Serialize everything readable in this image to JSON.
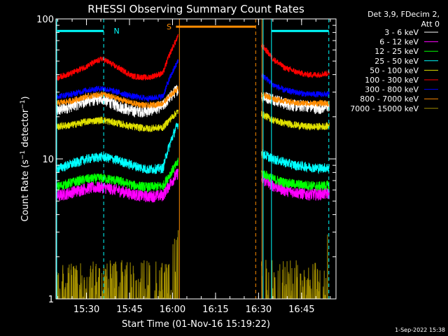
{
  "chart_data": {
    "type": "line",
    "title": "RHESSI Observing Summary Count Rates",
    "xlabel": "Start Time (01-Nov-16 15:19:22)",
    "ylabel": "Count Rate (s⁻¹ detector⁻¹)",
    "footer_date": "1-Sep-2022 15:38",
    "legend_header": [
      "Det 3,9, FDecim 2,",
      "Att 0"
    ],
    "y_scale": "log",
    "ylim": [
      1,
      100
    ],
    "y_ticks": [
      {
        "value": 1,
        "label": "1"
      },
      {
        "value": 10,
        "label": "10"
      },
      {
        "value": 100,
        "label": "100"
      }
    ],
    "xlim": [
      "15:19:22",
      "16:57:00"
    ],
    "x_ticks": [
      "15:30",
      "15:45",
      "16:00",
      "16:15",
      "16:30",
      "16:45"
    ],
    "x_tick_minutes": [
      30,
      45,
      60,
      75,
      90,
      105
    ],
    "x_start_minutes": 19.37,
    "x_end_minutes": 117,
    "gap": [
      "16:02",
      "16:31"
    ],
    "gap_minutes": [
      62.0,
      91.0
    ],
    "annotations": [
      {
        "label": "N",
        "color": "#00ffff",
        "text_at": 40.5,
        "span": [
          19.8,
          36.0
        ],
        "level": 82,
        "dashed_at": [
          36.0
        ]
      },
      {
        "label": "S",
        "color": "#ff8c00",
        "text_at": 58.8,
        "span": [
          61.2,
          89.0
        ],
        "level": 88,
        "dashed_at": [
          89.0
        ]
      },
      {
        "label": "",
        "color": "#00ffff",
        "text_at": null,
        "span": [
          94.5,
          114.5
        ],
        "level": 82,
        "dashed_at": [
          114.5
        ]
      }
    ],
    "series": [
      {
        "name": "3 - 6 keV",
        "color": "#000000",
        "pre": [
          22,
          24,
          26,
          27,
          24,
          22,
          22,
          24,
          32
        ],
        "post": [
          28,
          27,
          25,
          24,
          24,
          23,
          24
        ],
        "noise": 0.1
      },
      {
        "name": "6 - 12 keV",
        "color": "#ff00ff",
        "pre": [
          5.4,
          5.8,
          6.2,
          6.3,
          6.0,
          5.6,
          5.4,
          5.5,
          8.0
        ],
        "post": [
          7.2,
          6.5,
          6.0,
          5.8,
          5.6,
          5.6,
          5.7
        ],
        "noise": 0.1
      },
      {
        "name": "12 - 25 keV",
        "color": "#00ff00",
        "pre": [
          6.3,
          6.8,
          7.2,
          7.3,
          7.0,
          6.5,
          6.3,
          6.4,
          9.5
        ],
        "post": [
          8.0,
          7.2,
          6.8,
          6.6,
          6.5,
          6.4,
          6.5
        ],
        "noise": 0.08
      },
      {
        "name": "25 - 50 keV",
        "color": "#00ffff",
        "pre": [
          8.5,
          9.2,
          10.0,
          10.4,
          9.8,
          9.0,
          8.4,
          8.6,
          18
        ],
        "post": [
          11,
          10,
          9.5,
          9.0,
          8.8,
          8.6,
          8.7
        ],
        "noise": 0.08
      },
      {
        "name": "50 - 100 keV",
        "color": "#e0e000",
        "pre": [
          17,
          17.5,
          18.5,
          19,
          18,
          17,
          16.5,
          16.8,
          22
        ],
        "post": [
          21,
          19,
          18,
          17.5,
          17,
          17,
          17.2
        ],
        "noise": 0.06
      },
      {
        "name": "100 - 300 keV",
        "color": "#ff0000",
        "pre": [
          38,
          41,
          46,
          52,
          45,
          39,
          38,
          41,
          75
        ],
        "post": [
          65,
          52,
          45,
          42,
          40,
          40,
          41
        ],
        "noise": 0.05
      },
      {
        "name": "300 - 800 keV",
        "color": "#0000ff",
        "pre": [
          28,
          29,
          31,
          32,
          30,
          28,
          27,
          28,
          50
        ],
        "post": [
          40,
          34,
          31,
          30,
          29,
          29,
          29
        ],
        "noise": 0.05
      },
      {
        "name": "800 - 7000 keV",
        "color": "#ff8c00",
        "pre": [
          25,
          26,
          28,
          29,
          27,
          25,
          24,
          25,
          32
        ],
        "post": [
          29,
          27,
          26,
          25,
          25,
          25,
          25
        ],
        "noise": 0.05
      },
      {
        "name": "7000 - 15000 keV",
        "color": "#a08c00",
        "pre": [
          1,
          1,
          1,
          1,
          1,
          1,
          1,
          1,
          4
        ],
        "post": [
          1,
          1,
          1,
          1,
          1,
          1,
          1
        ],
        "noise": 0.0
      }
    ]
  }
}
